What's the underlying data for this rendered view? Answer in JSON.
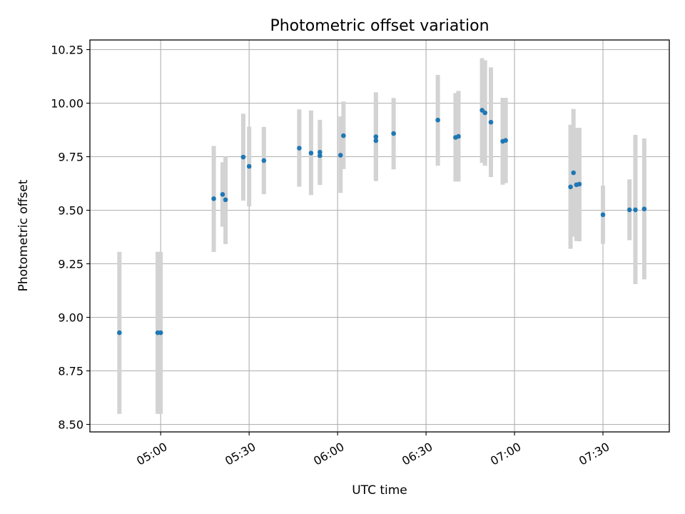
{
  "chart_data": {
    "type": "scatter",
    "title": "Photometric offset variation",
    "xlabel": "UTC time",
    "ylabel": "Photometric offset",
    "x_unit": "minutes since 00:00 UTC",
    "xlim": [
      4.6,
      7.875
    ],
    "ylim": [
      8.465,
      10.295
    ],
    "x_ticks": [
      {
        "value": 5.0,
        "label": "05:00"
      },
      {
        "value": 5.5,
        "label": "05:30"
      },
      {
        "value": 6.0,
        "label": "06:00"
      },
      {
        "value": 6.5,
        "label": "06:30"
      },
      {
        "value": 7.0,
        "label": "07:00"
      },
      {
        "value": 7.5,
        "label": "07:30"
      }
    ],
    "y_ticks": [
      {
        "value": 8.5,
        "label": "8.50"
      },
      {
        "value": 8.75,
        "label": "8.75"
      },
      {
        "value": 9.0,
        "label": "9.00"
      },
      {
        "value": 9.25,
        "label": "9.25"
      },
      {
        "value": 9.5,
        "label": "9.50"
      },
      {
        "value": 9.75,
        "label": "9.75"
      },
      {
        "value": 10.0,
        "label": "10.00"
      },
      {
        "value": 10.25,
        "label": "10.25"
      }
    ],
    "grid": true,
    "colors": {
      "point": "#1f77b4",
      "errorbar": "#d3d3d3"
    },
    "points": [
      {
        "x": "04:46",
        "y": 8.928,
        "lo": 8.549,
        "hi": 9.306
      },
      {
        "x": "04:59",
        "y": 8.928,
        "lo": 8.549,
        "hi": 9.306
      },
      {
        "x": "05:00",
        "y": 8.928,
        "lo": 8.549,
        "hi": 9.306
      },
      {
        "x": "05:18",
        "y": 9.554,
        "lo": 9.305,
        "hi": 9.8
      },
      {
        "x": "05:21",
        "y": 9.574,
        "lo": 9.423,
        "hi": 9.724
      },
      {
        "x": "05:22",
        "y": 9.549,
        "lo": 9.342,
        "hi": 9.75
      },
      {
        "x": "05:28",
        "y": 9.748,
        "lo": 9.545,
        "hi": 9.951
      },
      {
        "x": "05:30",
        "y": 9.705,
        "lo": 9.518,
        "hi": 9.89
      },
      {
        "x": "05:35",
        "y": 9.732,
        "lo": 9.575,
        "hi": 9.889
      },
      {
        "x": "05:47",
        "y": 9.79,
        "lo": 9.61,
        "hi": 9.971
      },
      {
        "x": "05:51",
        "y": 9.767,
        "lo": 9.571,
        "hi": 9.966
      },
      {
        "x": "05:54",
        "y": 9.771,
        "lo": 9.618,
        "hi": 9.922
      },
      {
        "x": "05:54",
        "y": 9.755,
        "lo": 9.62,
        "hi": 9.89
      },
      {
        "x": "06:01",
        "y": 9.757,
        "lo": 9.581,
        "hi": 9.938
      },
      {
        "x": "06:02",
        "y": 9.848,
        "lo": 9.692,
        "hi": 10.008
      },
      {
        "x": "06:13",
        "y": 9.843,
        "lo": 9.636,
        "hi": 10.051
      },
      {
        "x": "06:13",
        "y": 9.825,
        "lo": 9.64,
        "hi": 10.01
      },
      {
        "x": "06:19",
        "y": 9.858,
        "lo": 9.691,
        "hi": 10.024
      },
      {
        "x": "06:34",
        "y": 9.921,
        "lo": 9.708,
        "hi": 10.132
      },
      {
        "x": "06:40",
        "y": 9.84,
        "lo": 9.634,
        "hi": 10.047
      },
      {
        "x": "06:41",
        "y": 9.845,
        "lo": 9.634,
        "hi": 10.057
      },
      {
        "x": "06:49",
        "y": 9.967,
        "lo": 9.721,
        "hi": 10.21
      },
      {
        "x": "06:50",
        "y": 9.955,
        "lo": 9.708,
        "hi": 10.2
      },
      {
        "x": "06:52",
        "y": 9.911,
        "lo": 9.655,
        "hi": 10.167
      },
      {
        "x": "06:56",
        "y": 9.822,
        "lo": 9.619,
        "hi": 10.025
      },
      {
        "x": "06:57",
        "y": 9.826,
        "lo": 9.627,
        "hi": 10.025
      },
      {
        "x": "07:19",
        "y": 9.609,
        "lo": 9.32,
        "hi": 9.899
      },
      {
        "x": "07:20",
        "y": 9.675,
        "lo": 9.377,
        "hi": 9.973
      },
      {
        "x": "07:21",
        "y": 9.619,
        "lo": 9.356,
        "hi": 9.885
      },
      {
        "x": "07:22",
        "y": 9.622,
        "lo": 9.355,
        "hi": 9.885
      },
      {
        "x": "07:30",
        "y": 9.479,
        "lo": 9.343,
        "hi": 9.615
      },
      {
        "x": "07:39",
        "y": 9.502,
        "lo": 9.36,
        "hi": 9.644
      },
      {
        "x": "07:41",
        "y": 9.502,
        "lo": 9.155,
        "hi": 9.852
      },
      {
        "x": "07:44",
        "y": 9.506,
        "lo": 9.177,
        "hi": 9.835
      }
    ]
  }
}
